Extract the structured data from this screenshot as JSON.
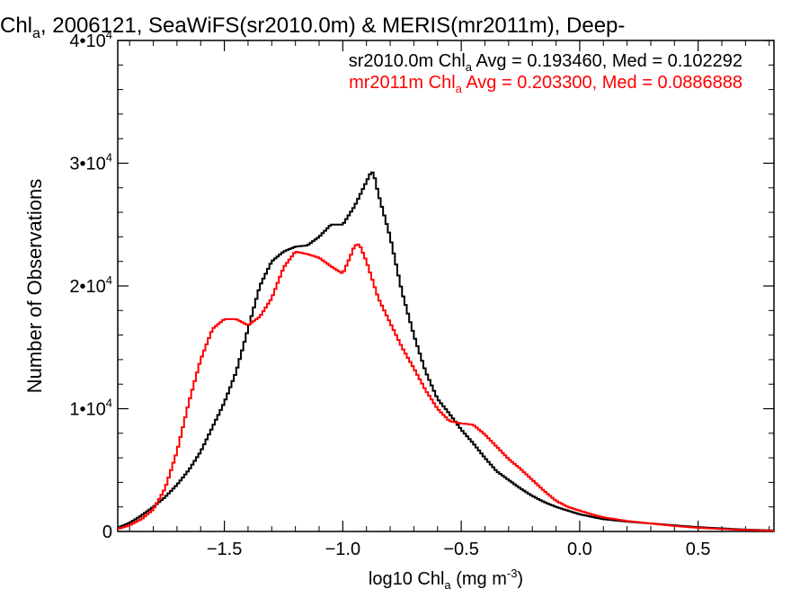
{
  "chart_data": {
    "type": "line",
    "title": {
      "pre": "Chl",
      "sub": "a",
      "post": ", 2006121, SeaWiFS(sr2010.0m) & MERIS(mr2011m), Deep-"
    },
    "xlabel": {
      "pre": "log10 Chl",
      "sub": "a",
      "mid": " (mg m",
      "sup": "-3",
      "post": ")"
    },
    "ylabel": "Number of Observations",
    "xlim": [
      -1.95,
      0.82
    ],
    "ylim": [
      0,
      40000
    ],
    "x_ticks": [
      {
        "value": -1.5,
        "label": "-1.5"
      },
      {
        "value": -1.0,
        "label": "-1.0"
      },
      {
        "value": -0.5,
        "label": "-0.5"
      },
      {
        "value": 0.0,
        "label": "0.0"
      },
      {
        "value": 0.5,
        "label": "0.5"
      }
    ],
    "y_ticks": [
      {
        "value": 0,
        "label": "0"
      },
      {
        "value": 10000,
        "label": "1•10",
        "exp": "4"
      },
      {
        "value": 20000,
        "label": "2•10",
        "exp": "4"
      },
      {
        "value": 30000,
        "label": "3•10",
        "exp": "4"
      },
      {
        "value": 40000,
        "label": "4•10",
        "exp": "4"
      }
    ],
    "annotations": [
      {
        "pre": "sr2010.0m Chl",
        "sub": "a",
        "post": " Avg = 0.193460, Med = 0.102292",
        "color": "#000000"
      },
      {
        "pre": "mr2011m Chl",
        "sub": "a",
        "post": " Avg = 0.203300, Med = 0.0886888",
        "color": "#ff0000"
      }
    ],
    "series": [
      {
        "color": "#000000",
        "x": [
          -1.95,
          -1.9,
          -1.85,
          -1.8,
          -1.75,
          -1.7,
          -1.65,
          -1.6,
          -1.55,
          -1.5,
          -1.45,
          -1.4,
          -1.35,
          -1.3,
          -1.25,
          -1.2,
          -1.15,
          -1.1,
          -1.05,
          -1.0,
          -0.95,
          -0.9,
          -0.88,
          -0.87,
          -0.85,
          -0.8,
          -0.75,
          -0.7,
          -0.65,
          -0.6,
          -0.55,
          -0.5,
          -0.45,
          -0.4,
          -0.35,
          -0.3,
          -0.25,
          -0.2,
          -0.15,
          -0.1,
          -0.05,
          0.0,
          0.05,
          0.1,
          0.2,
          0.3,
          0.4,
          0.5,
          0.6,
          0.7,
          0.82
        ],
        "y": [
          300,
          700,
          1300,
          2000,
          2800,
          3800,
          5000,
          6500,
          8500,
          10500,
          13000,
          16500,
          20000,
          22000,
          22800,
          23200,
          23300,
          24000,
          25000,
          25000,
          26500,
          28500,
          29300,
          29200,
          27500,
          24000,
          19500,
          16000,
          13000,
          10800,
          9600,
          8300,
          7200,
          6000,
          4900,
          4200,
          3500,
          2900,
          2400,
          2000,
          1700,
          1400,
          1200,
          1000,
          800,
          650,
          500,
          350,
          250,
          150,
          80
        ]
      },
      {
        "color": "#ff0000",
        "x": [
          -1.95,
          -1.9,
          -1.85,
          -1.8,
          -1.75,
          -1.7,
          -1.65,
          -1.6,
          -1.55,
          -1.5,
          -1.45,
          -1.4,
          -1.35,
          -1.3,
          -1.25,
          -1.2,
          -1.15,
          -1.1,
          -1.05,
          -1.0,
          -0.97,
          -0.95,
          -0.93,
          -0.9,
          -0.85,
          -0.8,
          -0.75,
          -0.7,
          -0.65,
          -0.6,
          -0.55,
          -0.5,
          -0.45,
          -0.4,
          -0.35,
          -0.3,
          -0.25,
          -0.2,
          -0.15,
          -0.1,
          -0.05,
          0.0,
          0.05,
          0.1,
          0.2,
          0.3,
          0.4,
          0.5,
          0.6,
          0.7,
          0.82
        ],
        "y": [
          200,
          500,
          1000,
          1800,
          3500,
          6500,
          10500,
          14000,
          16500,
          17300,
          17300,
          16800,
          17500,
          19000,
          21500,
          22800,
          22600,
          22300,
          21600,
          21000,
          22300,
          23300,
          23400,
          22000,
          19000,
          17000,
          15000,
          13300,
          11500,
          10000,
          9000,
          8800,
          8700,
          7900,
          6900,
          5900,
          5100,
          4200,
          3300,
          2500,
          2000,
          1700,
          1400,
          1150,
          850,
          650,
          450,
          300,
          200,
          120,
          60
        ]
      }
    ],
    "grid": false,
    "legend": "none"
  }
}
